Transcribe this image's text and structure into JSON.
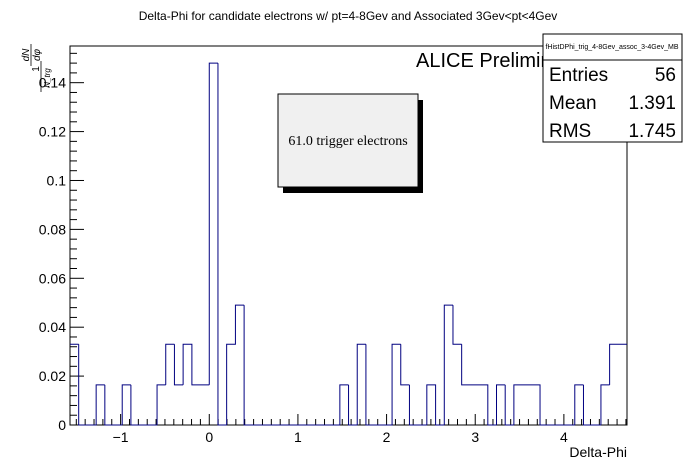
{
  "chart_data": {
    "type": "bar",
    "title": "Delta-Phi for candidate electrons w/ pt=4-8Gev and Associated 3Gev<pt<4Gev",
    "xlabel": "Delta-Phi",
    "ylabel": {
      "numerator_1": "1",
      "denominator_1": "N_trg",
      "numerator_2": "dN",
      "denominator_2": "dφ"
    },
    "xlim": [
      -1.571,
      4.712
    ],
    "ylim": [
      0,
      0.155
    ],
    "bin_width": 0.0982,
    "grid": false,
    "legend_position": "top-right",
    "x_ticks": [
      -1,
      0,
      1,
      2,
      3,
      4
    ],
    "x_tick_labels": [
      "−1",
      "0",
      "1",
      "2",
      "3",
      "4"
    ],
    "y_ticks": [
      0,
      0.02,
      0.04,
      0.06,
      0.08,
      0.1,
      0.12,
      0.14
    ],
    "y_tick_labels": [
      "0",
      "0.02",
      "0.04",
      "0.06",
      "0.08",
      "0.1",
      "0.12",
      "0.14"
    ],
    "bins_x_start": [
      -1.571,
      -1.473,
      -1.375,
      -1.276,
      -1.178,
      -1.08,
      -0.982,
      -0.884,
      -0.785,
      -0.687,
      -0.589,
      -0.491,
      -0.393,
      -0.295,
      -0.196,
      -0.098,
      0.0,
      0.098,
      0.196,
      0.295,
      0.393,
      0.491,
      0.589,
      0.687,
      0.785,
      0.884,
      0.982,
      1.08,
      1.178,
      1.276,
      1.375,
      1.473,
      1.571,
      1.669,
      1.767,
      1.865,
      1.963,
      2.062,
      2.16,
      2.258,
      2.356,
      2.454,
      2.553,
      2.651,
      2.749,
      2.847,
      2.945,
      3.043,
      3.142,
      3.24,
      3.338,
      3.436,
      3.534,
      3.632,
      3.731,
      3.829,
      3.927,
      4.025,
      4.123,
      4.221,
      4.32,
      4.418,
      4.516,
      4.614
    ],
    "values": [
      0.033,
      0.0,
      0.0,
      0.0164,
      0.0,
      0.0,
      0.0164,
      0.0,
      0.0,
      0.0,
      0.0164,
      0.033,
      0.0164,
      0.033,
      0.0164,
      0.0164,
      0.148,
      0.0,
      0.033,
      0.049,
      0.0,
      0.0,
      0.0,
      0.0,
      0.0,
      0.0,
      0.0,
      0.0,
      0.0,
      0.0,
      0.0,
      0.0164,
      0.0,
      0.033,
      0.0,
      0.0,
      0.0,
      0.033,
      0.0164,
      0.0,
      0.0,
      0.0164,
      0.0,
      0.049,
      0.033,
      0.0164,
      0.0164,
      0.0164,
      0.0,
      0.0164,
      0.0,
      0.0164,
      0.0164,
      0.0164,
      0.0,
      0.0,
      0.0,
      0.0,
      0.0164,
      0.0,
      0.0,
      0.0164,
      0.033,
      0.033
    ],
    "annotations": {
      "preliminary_label": "ALICE Preliminary",
      "trigger_box_text": "61.0 trigger electrons"
    },
    "stats_box": {
      "histogram_name": "fHistDPhi_trig_4-8Gev_assoc_3-4Gev_MB",
      "rows": [
        {
          "label": "Entries",
          "value": "56"
        },
        {
          "label": "Mean",
          "value": "1.391"
        },
        {
          "label": "RMS",
          "value": "1.745"
        }
      ]
    },
    "colors": {
      "histogram_line": "#000080",
      "frame": "#000000",
      "box_fill": "#f0f0f0",
      "box_shadow": "#000000",
      "background": "#ffffff"
    }
  }
}
